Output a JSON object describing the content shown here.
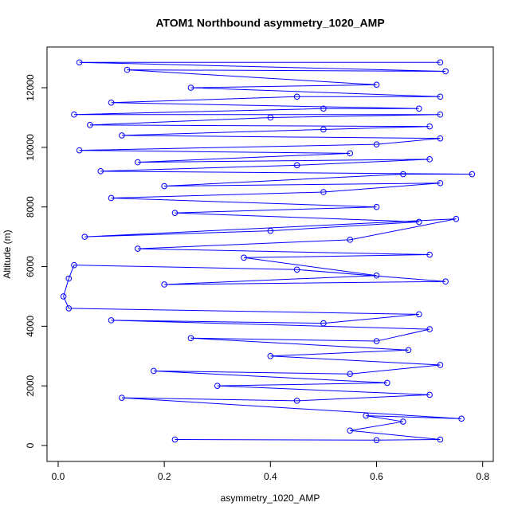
{
  "chart_data": {
    "type": "line",
    "markers": true,
    "title": "ATOM1 Northbound asymmetry_1020_AMP",
    "x_label": "asymmetry_1020_AMP",
    "y_label": "Altitude (m)",
    "xlim": [
      -0.021,
      0.82
    ],
    "ylim": [
      -535,
      13365
    ],
    "xticks": [
      {
        "value": 0,
        "label": "0.0"
      },
      0.2,
      0.4,
      0.6,
      0.8
    ],
    "yticks": [
      0,
      2000,
      4000,
      6000,
      8000,
      10000,
      12000
    ],
    "series": [
      {
        "color": "#0000ff",
        "x": [
          0.22,
          0.6,
          0.72,
          0.55,
          0.65,
          0.58,
          0.76,
          0.12,
          0.45,
          0.7,
          0.3,
          0.62,
          0.18,
          0.55,
          0.72,
          0.4,
          0.66,
          0.25,
          0.6,
          0.7,
          0.1,
          0.5,
          0.68,
          0.02,
          0.01,
          0.02,
          0.03,
          0.45,
          0.73,
          0.2,
          0.6,
          0.35,
          0.7,
          0.15,
          0.55,
          0.75,
          0.05,
          0.4,
          0.68,
          0.22,
          0.6,
          0.1,
          0.5,
          0.72,
          0.2,
          0.65,
          0.78,
          0.08,
          0.45,
          0.7,
          0.15,
          0.55,
          0.04,
          0.6,
          0.72,
          0.12,
          0.5,
          0.7,
          0.06,
          0.4,
          0.72,
          0.03,
          0.5,
          0.68,
          0.1,
          0.45,
          0.72,
          0.25,
          0.6,
          0.13,
          0.73,
          0.04,
          0.72
        ],
        "values": [
          200,
          180,
          200,
          500,
          800,
          1000,
          900,
          1600,
          1500,
          1700,
          2000,
          2100,
          2500,
          2400,
          2700,
          3000,
          3200,
          3600,
          3500,
          3900,
          4200,
          4100,
          4400,
          4600,
          5000,
          5600,
          6050,
          5900,
          5500,
          5400,
          5700,
          6300,
          6400,
          6600,
          6900,
          7600,
          7000,
          7200,
          7500,
          7800,
          8000,
          8300,
          8500,
          8800,
          8700,
          9100,
          9100,
          9200,
          9400,
          9600,
          9500,
          9800,
          9900,
          10100,
          10300,
          10400,
          10600,
          10700,
          10750,
          11000,
          11100,
          11100,
          11300,
          11300,
          11500,
          11700,
          11700,
          12000,
          12100,
          12600,
          12550,
          12850,
          12850
        ]
      }
    ]
  }
}
